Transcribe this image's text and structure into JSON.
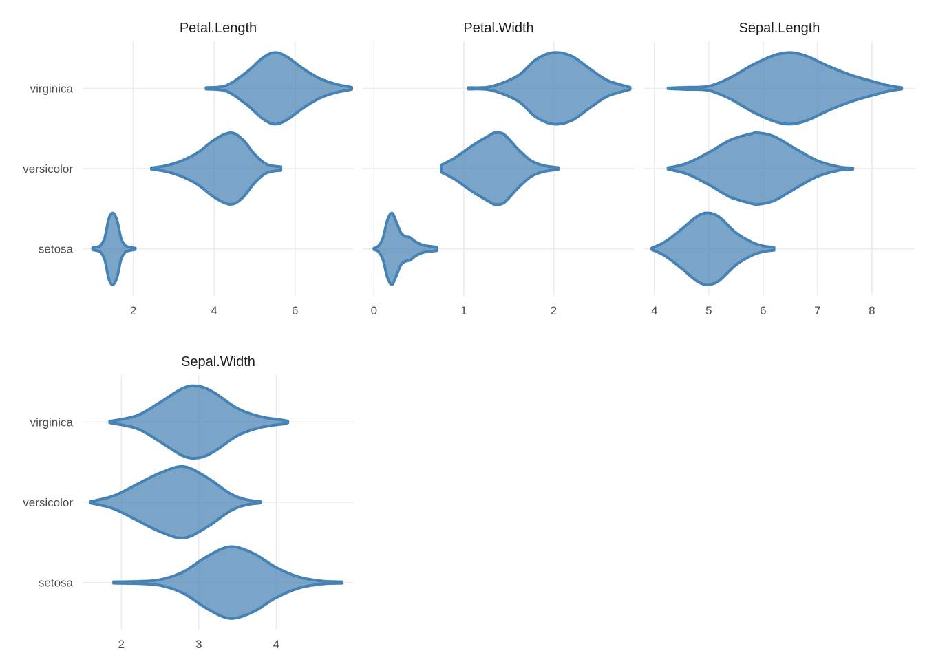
{
  "chart_data": [
    {
      "type": "violin",
      "title": "Petal.Length",
      "categories": [
        "setosa",
        "versicolor",
        "virginica"
      ],
      "xlim": [
        0.75,
        7.45
      ],
      "x_ticks": [
        2,
        4,
        6
      ],
      "grid": true,
      "fill_color": "#4682B4",
      "series": [
        {
          "category": "setosa",
          "density": [
            [
              1.0,
              0.03
            ],
            [
              1.1,
              0.05
            ],
            [
              1.2,
              0.1
            ],
            [
              1.3,
              0.32
            ],
            [
              1.4,
              0.85
            ],
            [
              1.5,
              1.0
            ],
            [
              1.6,
              0.8
            ],
            [
              1.7,
              0.3
            ],
            [
              1.8,
              0.1
            ],
            [
              1.9,
              0.05
            ],
            [
              2.0,
              0.03
            ],
            [
              2.05,
              0.02
            ]
          ]
        },
        {
          "category": "versicolor",
          "density": [
            [
              2.45,
              0.02
            ],
            [
              2.8,
              0.08
            ],
            [
              3.2,
              0.22
            ],
            [
              3.6,
              0.45
            ],
            [
              4.0,
              0.8
            ],
            [
              4.4,
              1.0
            ],
            [
              4.7,
              0.82
            ],
            [
              5.0,
              0.4
            ],
            [
              5.3,
              0.12
            ],
            [
              5.65,
              0.05
            ]
          ]
        },
        {
          "category": "virginica",
          "density": [
            [
              3.8,
              0.02
            ],
            [
              4.3,
              0.08
            ],
            [
              4.8,
              0.45
            ],
            [
              5.2,
              0.85
            ],
            [
              5.5,
              1.0
            ],
            [
              5.8,
              0.88
            ],
            [
              6.2,
              0.55
            ],
            [
              6.6,
              0.28
            ],
            [
              7.0,
              0.12
            ],
            [
              7.4,
              0.03
            ]
          ]
        }
      ]
    },
    {
      "type": "violin",
      "title": "Petal.Width",
      "categories": [
        "setosa",
        "versicolor",
        "virginica"
      ],
      "xlim": [
        -0.125,
        2.9
      ],
      "x_ticks": [
        0,
        1,
        2
      ],
      "grid": true,
      "fill_color": "#4682B4",
      "series": [
        {
          "category": "setosa",
          "density": [
            [
              0.0,
              0.02
            ],
            [
              0.05,
              0.08
            ],
            [
              0.1,
              0.3
            ],
            [
              0.15,
              0.8
            ],
            [
              0.2,
              1.0
            ],
            [
              0.25,
              0.75
            ],
            [
              0.3,
              0.45
            ],
            [
              0.35,
              0.35
            ],
            [
              0.4,
              0.32
            ],
            [
              0.45,
              0.22
            ],
            [
              0.5,
              0.15
            ],
            [
              0.55,
              0.1
            ],
            [
              0.6,
              0.08
            ],
            [
              0.7,
              0.05
            ]
          ]
        },
        {
          "category": "versicolor",
          "density": [
            [
              0.75,
              0.1
            ],
            [
              0.9,
              0.3
            ],
            [
              1.1,
              0.65
            ],
            [
              1.3,
              0.95
            ],
            [
              1.35,
              1.0
            ],
            [
              1.45,
              0.95
            ],
            [
              1.6,
              0.55
            ],
            [
              1.75,
              0.22
            ],
            [
              1.9,
              0.08
            ],
            [
              2.05,
              0.03
            ]
          ]
        },
        {
          "category": "virginica",
          "density": [
            [
              1.05,
              0.02
            ],
            [
              1.3,
              0.05
            ],
            [
              1.6,
              0.35
            ],
            [
              1.8,
              0.8
            ],
            [
              2.0,
              1.0
            ],
            [
              2.2,
              0.9
            ],
            [
              2.4,
              0.55
            ],
            [
              2.6,
              0.22
            ],
            [
              2.85,
              0.03
            ]
          ]
        }
      ]
    },
    {
      "type": "violin",
      "title": "Sepal.Length",
      "categories": [
        "setosa",
        "versicolor",
        "virginica"
      ],
      "xlim": [
        3.8,
        8.8
      ],
      "x_ticks": [
        4,
        5,
        6,
        7,
        8
      ],
      "grid": true,
      "fill_color": "#4682B4",
      "series": [
        {
          "category": "setosa",
          "density": [
            [
              3.95,
              0.02
            ],
            [
              4.2,
              0.2
            ],
            [
              4.5,
              0.55
            ],
            [
              4.8,
              0.92
            ],
            [
              5.0,
              1.0
            ],
            [
              5.2,
              0.88
            ],
            [
              5.5,
              0.45
            ],
            [
              5.8,
              0.18
            ],
            [
              6.0,
              0.08
            ],
            [
              6.2,
              0.04
            ]
          ]
        },
        {
          "category": "versicolor",
          "density": [
            [
              4.25,
              0.02
            ],
            [
              4.6,
              0.15
            ],
            [
              5.0,
              0.45
            ],
            [
              5.4,
              0.8
            ],
            [
              5.8,
              0.98
            ],
            [
              5.9,
              1.0
            ],
            [
              6.2,
              0.9
            ],
            [
              6.6,
              0.55
            ],
            [
              7.0,
              0.22
            ],
            [
              7.4,
              0.05
            ],
            [
              7.65,
              0.02
            ]
          ]
        },
        {
          "category": "virginica",
          "density": [
            [
              4.25,
              0.01
            ],
            [
              4.6,
              0.03
            ],
            [
              5.0,
              0.06
            ],
            [
              5.4,
              0.3
            ],
            [
              5.8,
              0.65
            ],
            [
              6.2,
              0.92
            ],
            [
              6.5,
              1.0
            ],
            [
              6.8,
              0.9
            ],
            [
              7.2,
              0.62
            ],
            [
              7.6,
              0.38
            ],
            [
              8.0,
              0.2
            ],
            [
              8.3,
              0.08
            ],
            [
              8.55,
              0.02
            ]
          ]
        }
      ]
    },
    {
      "type": "violin",
      "title": "Sepal.Width",
      "categories": [
        "setosa",
        "versicolor",
        "virginica"
      ],
      "xlim": [
        1.5,
        5.0
      ],
      "x_ticks": [
        2,
        3,
        4
      ],
      "grid": true,
      "fill_color": "#4682B4",
      "series": [
        {
          "category": "setosa",
          "density": [
            [
              1.9,
              0.02
            ],
            [
              2.2,
              0.03
            ],
            [
              2.5,
              0.08
            ],
            [
              2.8,
              0.3
            ],
            [
              3.1,
              0.72
            ],
            [
              3.4,
              1.0
            ],
            [
              3.7,
              0.82
            ],
            [
              4.0,
              0.42
            ],
            [
              4.3,
              0.15
            ],
            [
              4.6,
              0.04
            ],
            [
              4.85,
              0.02
            ]
          ]
        },
        {
          "category": "versicolor",
          "density": [
            [
              1.6,
              0.02
            ],
            [
              1.9,
              0.18
            ],
            [
              2.2,
              0.5
            ],
            [
              2.5,
              0.82
            ],
            [
              2.8,
              1.0
            ],
            [
              3.1,
              0.7
            ],
            [
              3.4,
              0.25
            ],
            [
              3.6,
              0.08
            ],
            [
              3.8,
              0.02
            ]
          ]
        },
        {
          "category": "virginica",
          "density": [
            [
              1.85,
              0.02
            ],
            [
              2.2,
              0.18
            ],
            [
              2.5,
              0.55
            ],
            [
              2.8,
              0.95
            ],
            [
              3.0,
              1.0
            ],
            [
              3.2,
              0.82
            ],
            [
              3.5,
              0.38
            ],
            [
              3.8,
              0.15
            ],
            [
              4.1,
              0.05
            ],
            [
              4.15,
              0.02
            ]
          ]
        }
      ]
    }
  ]
}
